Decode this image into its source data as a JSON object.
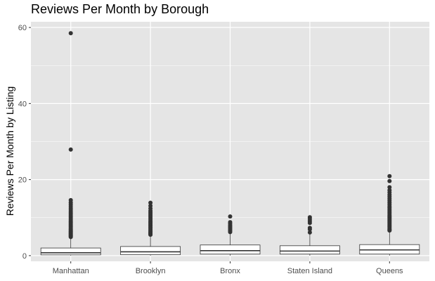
{
  "chart_data": {
    "type": "boxplot",
    "title": "Reviews Per Month by Borough",
    "xlabel": "",
    "ylabel": "Reviews Per Month by Listing",
    "ylim": [
      -1.5,
      61.5
    ],
    "y_ticks": [
      0,
      20,
      40,
      60
    ],
    "grid": true,
    "colors": {
      "panel": "#e5e5e5",
      "grid": "#ffffff",
      "box_fill": "#ffffff",
      "box_stroke": "#333333",
      "point": "#333333"
    },
    "categories": [
      "Manhattan",
      "Brooklyn",
      "Bronx",
      "Staten Island",
      "Queens"
    ],
    "boxes": [
      {
        "name": "Manhattan",
        "min": 0.01,
        "q1": 0.2,
        "median": 0.75,
        "q3": 2.0,
        "whisker_high": 4.7,
        "outliers": [
          4.9,
          5.1,
          5.3,
          5.5,
          5.7,
          5.9,
          6.1,
          6.3,
          6.5,
          6.8,
          7.0,
          7.3,
          7.6,
          7.9,
          8.2,
          8.5,
          8.8,
          9.1,
          9.5,
          9.9,
          10.3,
          10.7,
          11.1,
          11.5,
          12.0,
          12.5,
          13.0,
          13.5,
          14.0,
          14.6,
          27.9,
          58.5
        ]
      },
      {
        "name": "Brooklyn",
        "min": 0.01,
        "q1": 0.25,
        "median": 1.0,
        "q3": 2.4,
        "whisker_high": 5.3,
        "outliers": [
          5.5,
          5.7,
          5.9,
          6.1,
          6.3,
          6.6,
          6.9,
          7.2,
          7.5,
          7.8,
          8.1,
          8.4,
          8.7,
          9.0,
          9.4,
          9.8,
          10.2,
          10.6,
          11.0,
          11.4,
          11.8,
          12.4,
          13.1,
          13.9
        ]
      },
      {
        "name": "Bronx",
        "min": 0.01,
        "q1": 0.4,
        "median": 1.3,
        "q3": 2.8,
        "whisker_high": 6.0,
        "outliers": [
          6.2,
          6.5,
          6.8,
          7.1,
          7.4,
          7.7,
          8.0,
          8.4,
          8.8,
          10.3
        ]
      },
      {
        "name": "Staten Island",
        "min": 0.01,
        "q1": 0.4,
        "median": 1.2,
        "q3": 2.6,
        "whisker_high": 5.7,
        "outliers": [
          6.1,
          6.9,
          7.3,
          8.6,
          9.1,
          9.6,
          10.1
        ]
      },
      {
        "name": "Queens",
        "min": 0.01,
        "q1": 0.4,
        "median": 1.5,
        "q3": 2.9,
        "whisker_high": 6.4,
        "outliers": [
          6.6,
          6.8,
          7.0,
          7.3,
          7.6,
          7.9,
          8.2,
          8.5,
          8.8,
          9.1,
          9.4,
          9.7,
          10.0,
          10.3,
          10.6,
          11.0,
          11.4,
          11.8,
          12.2,
          12.6,
          13.0,
          13.5,
          14.0,
          14.5,
          15.0,
          15.5,
          16.0,
          16.6,
          17.2,
          18.0,
          19.6,
          20.9
        ]
      }
    ]
  }
}
